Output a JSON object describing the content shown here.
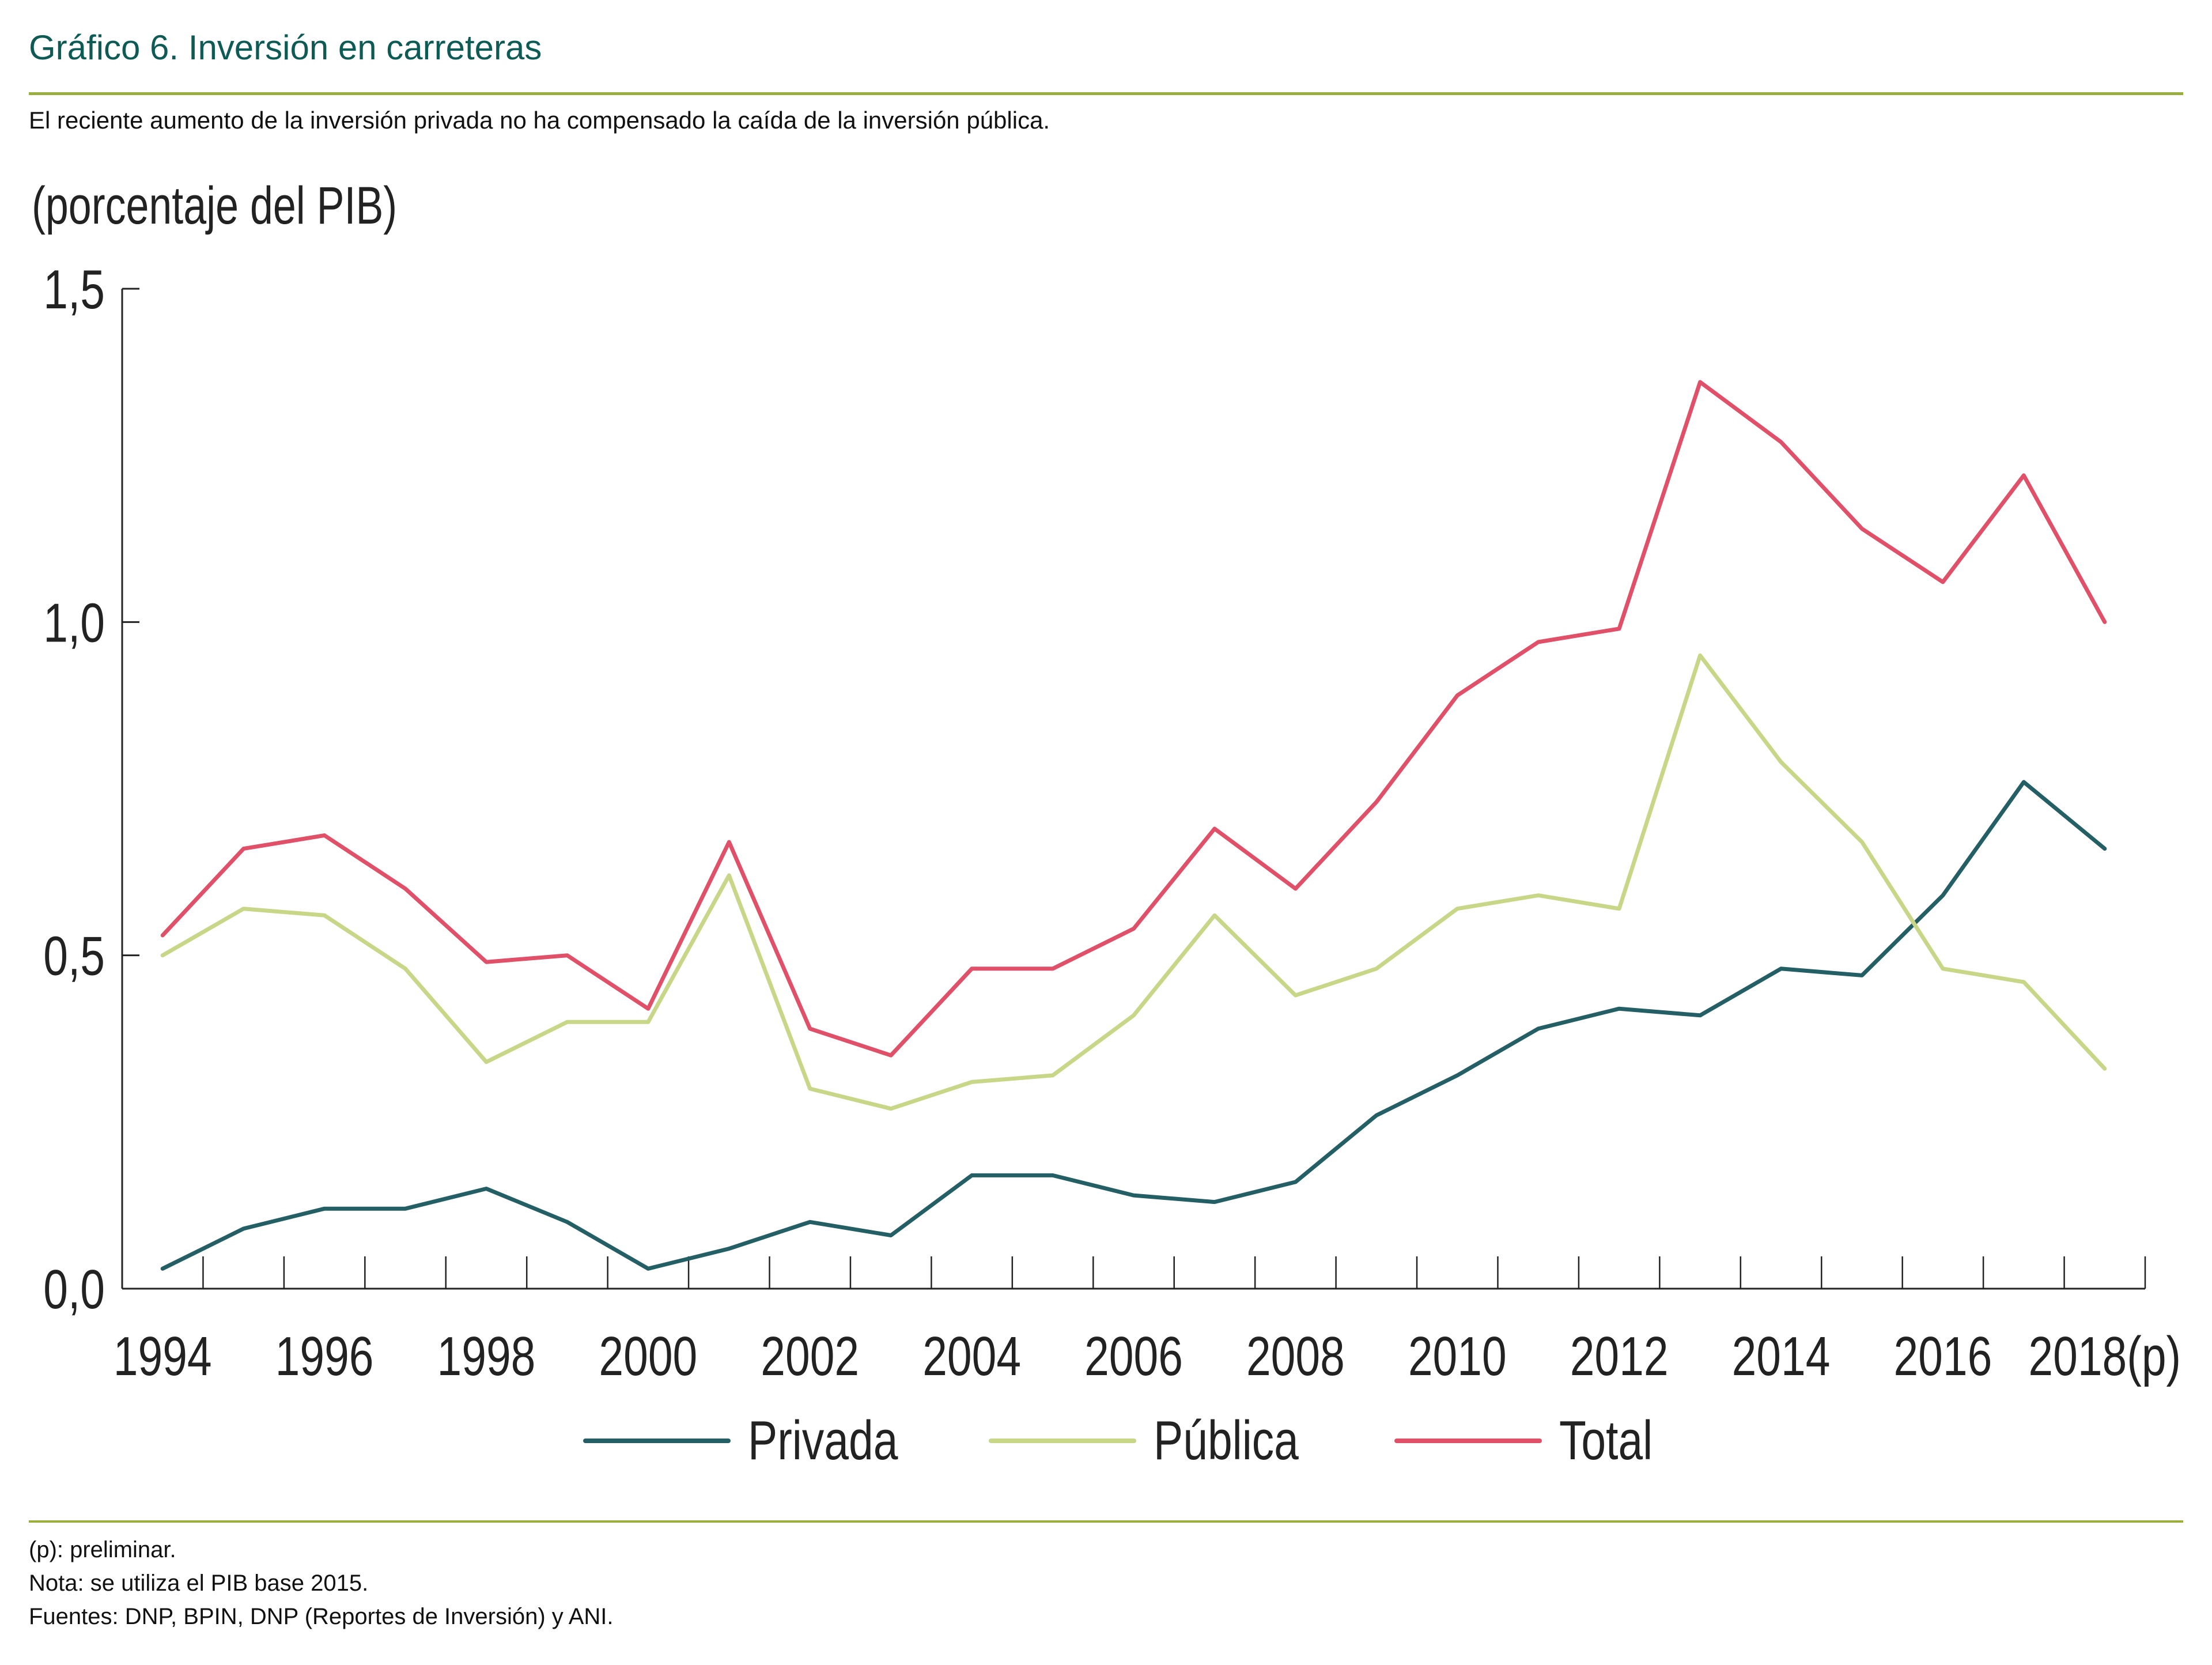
{
  "header": {
    "title": "Gráfico 6. Inversión en carreteras",
    "subtitle": "El reciente aumento de la inversión privada no ha compensado la caída de la inversión pública."
  },
  "colors": {
    "title": "#0E5B55",
    "rule": "#9AAE3F",
    "privada": "#245F66",
    "publica": "#C8D687",
    "total": "#E05068"
  },
  "chart_data": {
    "type": "line",
    "title": "Inversión en carreteras",
    "ylabel": "(porcentaje del PIB)",
    "xlabel": "",
    "ylim": [
      0,
      1.5
    ],
    "yticks": [
      0,
      0.5,
      1.0,
      1.5
    ],
    "ytick_labels": [
      "0,0",
      "0,5",
      "1,0",
      "1,5"
    ],
    "x": [
      "1994",
      "1995",
      "1996",
      "1997",
      "1998",
      "1999",
      "2000",
      "2001",
      "2002",
      "2003",
      "2004",
      "2005",
      "2006",
      "2007",
      "2008",
      "2009",
      "2010",
      "2011",
      "2012",
      "2013",
      "2014",
      "2015",
      "2016",
      "2017",
      "2018(p)"
    ],
    "xtick_labels": [
      "1994",
      "1996",
      "1998",
      "2000",
      "2002",
      "2004",
      "2006",
      "2008",
      "2010",
      "2012",
      "2014",
      "2016",
      "2018(p)"
    ],
    "grid": false,
    "legend_position": "bottom-center",
    "series": [
      {
        "name": "Privada",
        "color": "#245F66",
        "values": [
          0.03,
          0.09,
          0.12,
          0.12,
          0.15,
          0.1,
          0.03,
          0.06,
          0.1,
          0.08,
          0.17,
          0.17,
          0.14,
          0.13,
          0.16,
          0.26,
          0.32,
          0.39,
          0.42,
          0.41,
          0.48,
          0.47,
          0.59,
          0.76,
          0.66
        ]
      },
      {
        "name": "Pública",
        "color": "#C8D687",
        "values": [
          0.5,
          0.57,
          0.56,
          0.48,
          0.34,
          0.4,
          0.4,
          0.62,
          0.3,
          0.27,
          0.31,
          0.32,
          0.41,
          0.56,
          0.44,
          0.48,
          0.57,
          0.59,
          0.57,
          0.95,
          0.79,
          0.67,
          0.48,
          0.46,
          0.33
        ]
      },
      {
        "name": "Total",
        "color": "#E05068",
        "values": [
          0.53,
          0.66,
          0.68,
          0.6,
          0.49,
          0.5,
          0.42,
          0.67,
          0.39,
          0.35,
          0.48,
          0.48,
          0.54,
          0.69,
          0.6,
          0.73,
          0.89,
          0.97,
          0.99,
          1.36,
          1.27,
          1.14,
          1.06,
          1.22,
          1.0
        ]
      }
    ]
  },
  "footnotes": [
    "(p): preliminar.",
    "Nota: se utiliza el PIB base 2015.",
    "Fuentes: DNP, BPIN, DNP (Reportes de Inversión) y ANI."
  ]
}
